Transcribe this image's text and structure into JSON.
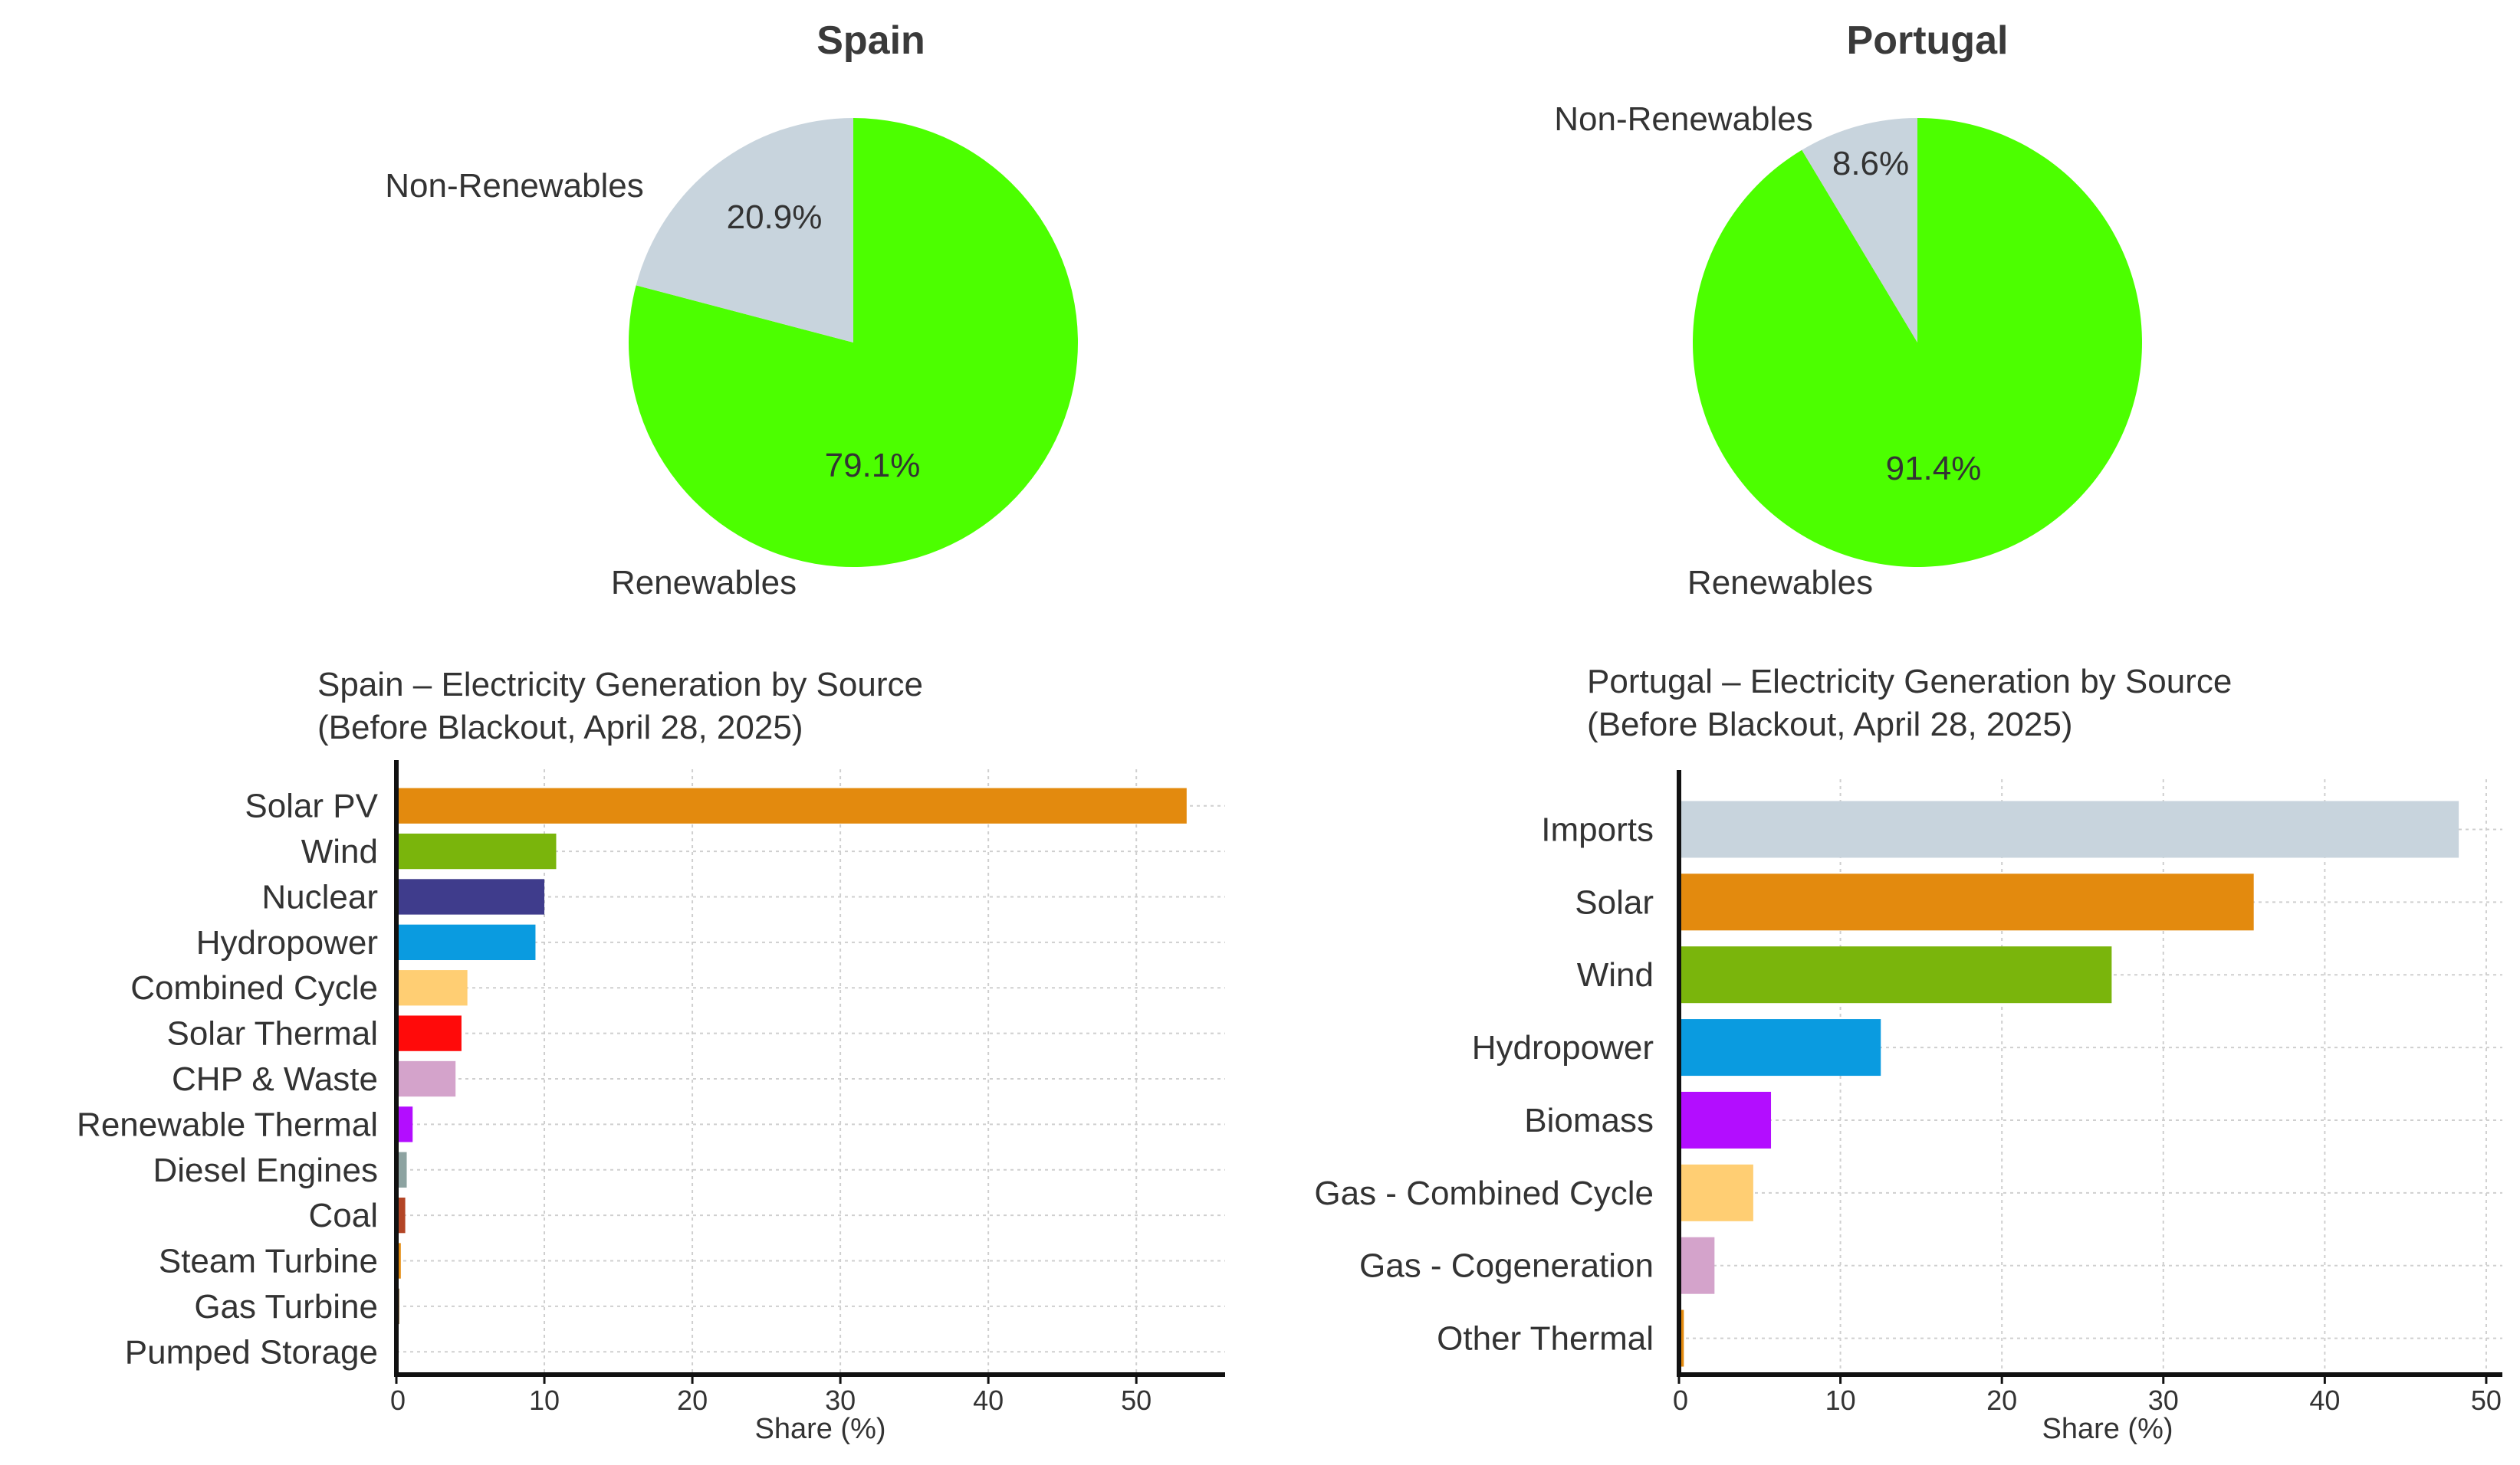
{
  "chart_data": [
    {
      "type": "pie",
      "title": "Spain",
      "slices": [
        {
          "label": "Renewables",
          "value": 79.1,
          "pct_label": "79.1%",
          "color": "#4cff00"
        },
        {
          "label": "Non-Renewables",
          "value": 20.9,
          "pct_label": "20.9%",
          "color": "#c8d4dd"
        }
      ]
    },
    {
      "type": "pie",
      "title": "Portugal",
      "slices": [
        {
          "label": "Renewables",
          "value": 91.4,
          "pct_label": "91.4%",
          "color": "#4cff00"
        },
        {
          "label": "Non-Renewables",
          "value": 8.6,
          "pct_label": "8.6%",
          "color": "#c8d4dd"
        }
      ]
    },
    {
      "type": "bar",
      "orientation": "horizontal",
      "title_lines": [
        "Spain – Electricity Generation by Source",
        "(Before Blackout, April 28, 2025)"
      ],
      "xlabel": "Share (%)",
      "xlim": [
        0,
        56
      ],
      "xticks": [
        0,
        10,
        20,
        30,
        40,
        50
      ],
      "grid": true,
      "categories": [
        "Solar PV",
        "Wind",
        "Nuclear",
        "Hydropower",
        "Combined Cycle",
        "Solar Thermal",
        "CHP & Waste",
        "Renewable Thermal",
        "Diesel Engines",
        "Coal",
        "Steam Turbine",
        "Gas Turbine",
        "Pumped Storage"
      ],
      "values": [
        53.4,
        10.8,
        10.0,
        9.4,
        4.8,
        4.4,
        4.0,
        1.1,
        0.7,
        0.6,
        0.3,
        0.2,
        0.1
      ],
      "colors": [
        "#e38a0e",
        "#7ab50c",
        "#3f3c8c",
        "#0a9be0",
        "#ffce73",
        "#ff0a0a",
        "#d4a3cb",
        "#b30dff",
        "#8da3a1",
        "#b34526",
        "#e38a0e",
        "#7a5a2a",
        "#444444"
      ]
    },
    {
      "type": "bar",
      "orientation": "horizontal",
      "title_lines": [
        "Portugal – Electricity Generation by Source",
        "(Before Blackout, April 28, 2025)"
      ],
      "xlabel": "Share (%)",
      "xlim": [
        0,
        51
      ],
      "xticks": [
        0,
        10,
        20,
        30,
        40,
        50
      ],
      "grid": true,
      "categories": [
        "Imports",
        "Solar",
        "Wind",
        "Hydropower",
        "Biomass",
        "Gas - Combined Cycle",
        "Gas - Cogeneration",
        "Other Thermal"
      ],
      "values": [
        48.3,
        35.6,
        26.8,
        12.5,
        5.7,
        4.6,
        2.2,
        0.3
      ],
      "colors": [
        "#c8d4dd",
        "#e38a0e",
        "#7ab50c",
        "#0a9be0",
        "#b30dff",
        "#ffce73",
        "#d4a3cb",
        "#e38a0e"
      ]
    }
  ]
}
